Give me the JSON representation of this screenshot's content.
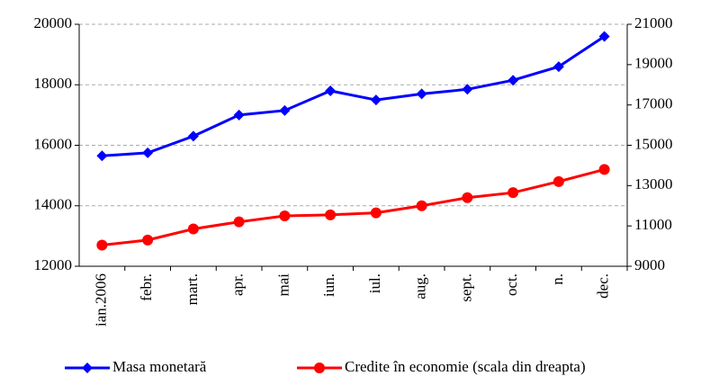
{
  "chart_data": {
    "type": "line",
    "categories": [
      "ian.2006",
      "febr.",
      "mart.",
      "apr.",
      "mai",
      "iun.",
      "iul.",
      "aug.",
      "sept.",
      "oct.",
      "n.",
      "dec."
    ],
    "series": [
      {
        "name": "Masa monetară",
        "color": "#0000ff",
        "marker": "diamond",
        "values": [
          15650,
          15750,
          16300,
          17000,
          17150,
          17800,
          17500,
          17700,
          17850,
          18150,
          18600,
          19600
        ]
      },
      {
        "name": "Credite în economie (scala din dreapta)",
        "color": "#ff0000",
        "marker": "circle",
        "axis": "y2",
        "values": [
          10050,
          10300,
          10850,
          11200,
          11500,
          11550,
          11650,
          12000,
          12400,
          12650,
          13200,
          13800
        ]
      }
    ],
    "ylim": [
      12000,
      20000
    ],
    "yticks": [
      12000,
      14000,
      16000,
      18000,
      20000
    ],
    "y2lim": [
      9000,
      21000
    ],
    "y2ticks": [
      9000,
      11000,
      13000,
      15000,
      17000,
      19000,
      21000
    ],
    "grid": true,
    "legend": "bottom"
  }
}
